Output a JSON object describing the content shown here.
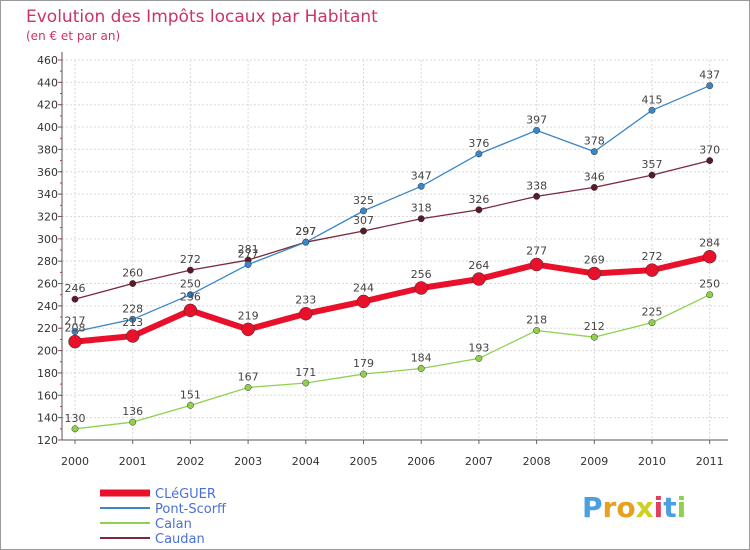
{
  "chart_data": {
    "type": "line",
    "title": "Evolution des Impôts locaux par Habitant",
    "subtitle": "(en € et par an)",
    "categories": [
      "2000",
      "2001",
      "2002",
      "2003",
      "2004",
      "2005",
      "2006",
      "2007",
      "2008",
      "2009",
      "2010",
      "2011"
    ],
    "ylim": [
      120,
      460
    ],
    "yticks": [
      120,
      140,
      160,
      180,
      200,
      220,
      240,
      260,
      280,
      300,
      320,
      340,
      360,
      380,
      400,
      420,
      440,
      460
    ],
    "grid": true,
    "legend_position": "bottom-left",
    "series": [
      {
        "name": "Caudan",
        "color": "#7a2a3a",
        "values": [
          246,
          260,
          272,
          281,
          297,
          307,
          318,
          326,
          338,
          346,
          357,
          370
        ]
      },
      {
        "name": "Pont-Scorff",
        "color": "#3a86c8",
        "values": [
          217,
          228,
          250,
          277,
          297,
          325,
          347,
          376,
          397,
          378,
          415,
          437
        ]
      },
      {
        "name": "Calan",
        "color": "#8fd14f",
        "values": [
          130,
          136,
          151,
          167,
          171,
          179,
          184,
          193,
          218,
          212,
          225,
          250
        ]
      },
      {
        "name": "CLéGUER",
        "color": "#e8102a",
        "values": [
          208,
          213,
          236,
          219,
          233,
          244,
          256,
          264,
          277,
          269,
          272,
          284
        ]
      }
    ],
    "legend_order": [
      "CLéGUER",
      "Pont-Scorff",
      "Calan",
      "Caudan"
    ]
  },
  "logo": {
    "letters": [
      "P",
      "r",
      "o",
      "x",
      "i",
      "t",
      "i"
    ],
    "colors": [
      "#4aa0e0",
      "#e8a020",
      "#e8a020",
      "#d0d020",
      "#e04060",
      "#4aa0e0",
      "#8fd14f"
    ]
  }
}
